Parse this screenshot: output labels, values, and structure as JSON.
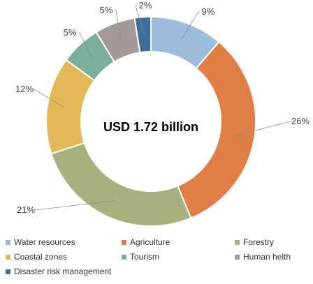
{
  "chart_data": {
    "type": "pie",
    "donut": true,
    "center_text": "USD 1.72 billion",
    "legend_placement": "bottom",
    "slices": [
      {
        "name": "Water resources",
        "value": 9,
        "label": "9%",
        "color": "#9dbbdc"
      },
      {
        "name": "Agriculture",
        "value": 26,
        "label": "26%",
        "color": "#e07f45"
      },
      {
        "name": "Forestry",
        "value": 21,
        "label": "21%",
        "color": "#a8b07e"
      },
      {
        "name": "Coastal zones",
        "value": 12,
        "label": "12%",
        "color": "#e2b859"
      },
      {
        "name": "Tourism",
        "value": 5,
        "label": "5%",
        "color": "#7aaf9c"
      },
      {
        "name": "Human helth",
        "value": 5,
        "label": "5%",
        "color": "#a59997"
      },
      {
        "name": "Disaster risk management",
        "value": 2,
        "label": "2%",
        "color": "#3e6f9b"
      }
    ]
  }
}
